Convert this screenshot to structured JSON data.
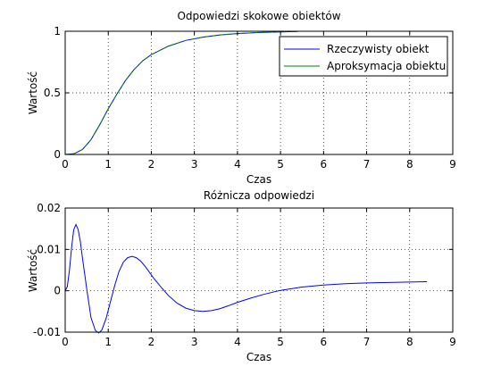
{
  "chart_data": [
    {
      "type": "line",
      "title": "Odpowiedzi skokowe obiektów",
      "xlabel": "Czas",
      "ylabel": "Wartość",
      "xlim": [
        0,
        9
      ],
      "ylim": [
        0,
        1
      ],
      "xticks": [
        "0",
        "1",
        "2",
        "3",
        "4",
        "5",
        "6",
        "7",
        "8",
        "9"
      ],
      "yticks": [
        "0",
        "0.5",
        "1"
      ],
      "grid": true,
      "legend": "top-right",
      "series": [
        {
          "name": "Rzeczywisty obiekt",
          "color": "#0000ff",
          "x": [
            0,
            0.2,
            0.4,
            0.6,
            0.8,
            1,
            1.2,
            1.4,
            1.6,
            1.8,
            2,
            2.4,
            2.8,
            3.2,
            3.6,
            4,
            4.5,
            5,
            5.4
          ],
          "y": [
            0,
            0.005,
            0.04,
            0.12,
            0.24,
            0.37,
            0.49,
            0.6,
            0.69,
            0.76,
            0.81,
            0.88,
            0.925,
            0.952,
            0.97,
            0.981,
            0.99,
            0.995,
            0.998
          ]
        },
        {
          "name": "Aproksymacja obiektu",
          "color": "#008000",
          "x": [
            0,
            0.2,
            0.4,
            0.6,
            0.8,
            1,
            1.2,
            1.4,
            1.6,
            1.8,
            2,
            2.4,
            2.8,
            3.2,
            3.6,
            4,
            4.5,
            5,
            5.4
          ],
          "y": [
            0,
            0.005,
            0.04,
            0.12,
            0.24,
            0.37,
            0.49,
            0.6,
            0.69,
            0.76,
            0.81,
            0.88,
            0.925,
            0.952,
            0.97,
            0.981,
            0.99,
            0.995,
            0.998
          ]
        }
      ]
    },
    {
      "type": "line",
      "title": "Różnicza odpowiedzi",
      "xlabel": "Czas",
      "ylabel": "Wartość",
      "xlim": [
        0,
        9
      ],
      "ylim": [
        -0.01,
        0.02
      ],
      "xticks": [
        "0",
        "1",
        "2",
        "3",
        "4",
        "5",
        "6",
        "7",
        "8",
        "9"
      ],
      "yticks": [
        "-0.01",
        "0",
        "0.01",
        "0.02"
      ],
      "grid": true,
      "series": [
        {
          "color": "#0000ff",
          "x": [
            0,
            0.05,
            0.1,
            0.15,
            0.2,
            0.25,
            0.3,
            0.35,
            0.4,
            0.5,
            0.6,
            0.7,
            0.78,
            0.85,
            0.95,
            1.05,
            1.15,
            1.25,
            1.35,
            1.45,
            1.55,
            1.65,
            1.75,
            1.85,
            1.95,
            2.05,
            2.2,
            2.4,
            2.6,
            2.8,
            3.0,
            3.2,
            3.4,
            3.6,
            3.8,
            4.0,
            4.3,
            4.6,
            5.0,
            5.5,
            6.0,
            6.5,
            7.0,
            7.5,
            8.0,
            8.4
          ],
          "y": [
            0,
            0.001,
            0.005,
            0.0105,
            0.0148,
            0.016,
            0.0148,
            0.012,
            0.008,
            0.0005,
            -0.0065,
            -0.0096,
            -0.0102,
            -0.0095,
            -0.0067,
            -0.0027,
            0.0013,
            0.0047,
            0.0069,
            0.008,
            0.0083,
            0.008,
            0.0072,
            0.006,
            0.0046,
            0.0031,
            0.0012,
            -0.0012,
            -0.003,
            -0.0042,
            -0.0048,
            -0.005,
            -0.0048,
            -0.0043,
            -0.0036,
            -0.0028,
            -0.0018,
            -0.0009,
            0.0001,
            0.0009,
            0.0014,
            0.0017,
            0.0019,
            0.002,
            0.0021,
            0.0022
          ]
        }
      ]
    }
  ]
}
